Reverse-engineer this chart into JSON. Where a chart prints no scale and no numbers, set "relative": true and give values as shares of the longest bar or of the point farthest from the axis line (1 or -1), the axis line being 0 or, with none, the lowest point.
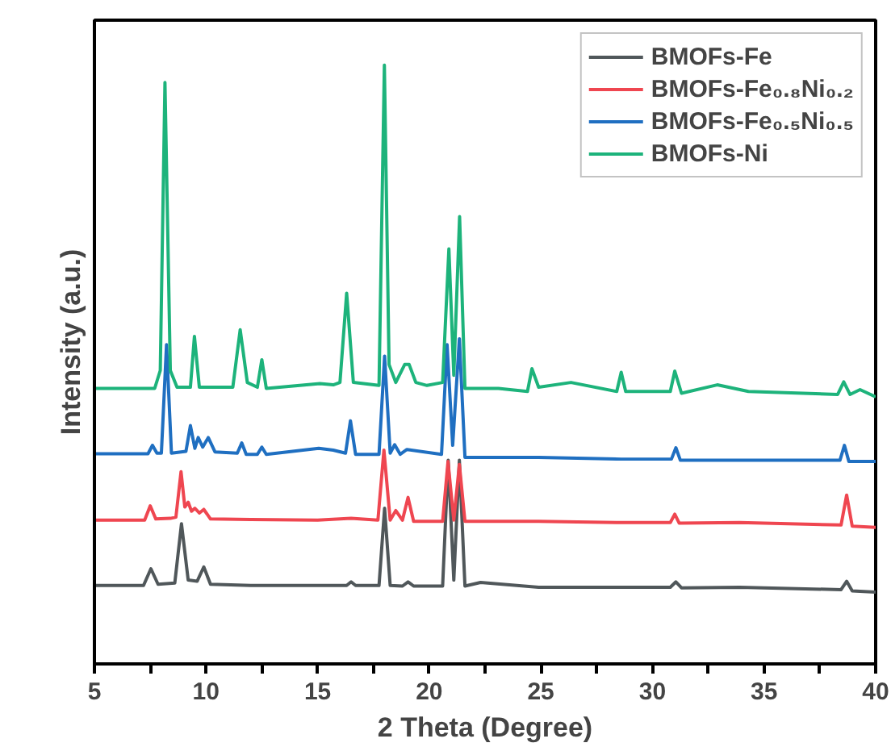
{
  "chart_data": {
    "type": "line",
    "relative": true,
    "xlabel": "2 Theta (Degree)",
    "ylabel": "Intensity (a.u.)",
    "xlim": [
      5,
      40
    ],
    "xticks": [
      5,
      {
        "value": 7.5,
        "label": null
      },
      10,
      {
        "value": 12.5,
        "label": null
      },
      15,
      {
        "value": 17.5,
        "label": null
      },
      20,
      {
        "value": 22.5,
        "label": null
      },
      25,
      {
        "value": 27.5,
        "label": null
      },
      30,
      {
        "value": 32.5,
        "label": null
      },
      35,
      {
        "value": 37.5,
        "label": null
      },
      40
    ],
    "grid": false,
    "legend": "top right",
    "line_style": "solid",
    "series": [
      {
        "name": "BMOFs-Fe",
        "color": "#50575a",
        "x": [
          5,
          7.2,
          7.53,
          7.85,
          8.6,
          8.9,
          9.2,
          9.6,
          9.9,
          10.2,
          12,
          15,
          16.3,
          16.5,
          16.7,
          17.75,
          18.0,
          18.25,
          18.8,
          19.05,
          19.3,
          20.6,
          20.85,
          21.1,
          21.35,
          21.6,
          22.3,
          24.9,
          28.6,
          30.8,
          31.05,
          31.3,
          33.9,
          38.45,
          38.7,
          38.95,
          40
        ],
        "values": [
          0.131,
          0.131,
          0.159,
          0.133,
          0.135,
          0.234,
          0.14,
          0.138,
          0.162,
          0.133,
          0.131,
          0.131,
          0.131,
          0.137,
          0.131,
          0.131,
          0.26,
          0.131,
          0.13,
          0.137,
          0.13,
          0.13,
          0.34,
          0.14,
          0.34,
          0.13,
          0.136,
          0.128,
          0.128,
          0.128,
          0.137,
          0.127,
          0.128,
          0.124,
          0.138,
          0.122,
          0.12
        ]
      },
      {
        "name": "BMOFs-Fe₀.₈Ni₀.₂",
        "color": "#ef4650",
        "x": [
          5,
          7.25,
          7.5,
          7.75,
          8.4,
          8.65,
          8.88,
          9.05,
          9.2,
          9.35,
          9.5,
          9.7,
          9.9,
          10.2,
          12,
          15,
          16.5,
          17.7,
          17.97,
          18.25,
          18.5,
          18.8,
          19.05,
          19.3,
          20.6,
          20.84,
          21.1,
          21.35,
          21.6,
          24.9,
          28.6,
          30.8,
          31.0,
          31.2,
          33.9,
          38.45,
          38.7,
          38.95,
          40
        ],
        "values": [
          0.24,
          0.24,
          0.264,
          0.242,
          0.243,
          0.245,
          0.321,
          0.262,
          0.27,
          0.255,
          0.26,
          0.252,
          0.258,
          0.242,
          0.241,
          0.24,
          0.243,
          0.24,
          0.357,
          0.24,
          0.256,
          0.24,
          0.278,
          0.238,
          0.238,
          0.338,
          0.24,
          0.333,
          0.238,
          0.238,
          0.236,
          0.236,
          0.25,
          0.235,
          0.236,
          0.232,
          0.282,
          0.23,
          0.228
        ]
      },
      {
        "name": "BMOFs-Fe₀.₅Ni₀.₅",
        "color": "#1f6fc1",
        "x": [
          5,
          7.4,
          7.6,
          7.8,
          8.0,
          8.23,
          8.45,
          9.1,
          9.3,
          9.5,
          9.65,
          9.85,
          10.1,
          10.4,
          11.4,
          11.6,
          11.8,
          12.3,
          12.5,
          12.7,
          15.05,
          15.7,
          16.25,
          16.47,
          16.7,
          17.75,
          18.0,
          18.25,
          18.45,
          18.7,
          19.0,
          20.55,
          20.8,
          21.05,
          21.35,
          21.6,
          24.9,
          28.6,
          30.85,
          31.05,
          31.25,
          38.4,
          38.6,
          38.8,
          40
        ],
        "values": [
          0.351,
          0.351,
          0.365,
          0.352,
          0.352,
          0.533,
          0.352,
          0.355,
          0.398,
          0.36,
          0.378,
          0.362,
          0.378,
          0.354,
          0.352,
          0.369,
          0.35,
          0.35,
          0.362,
          0.35,
          0.36,
          0.357,
          0.352,
          0.406,
          0.35,
          0.35,
          0.514,
          0.352,
          0.366,
          0.35,
          0.358,
          0.35,
          0.533,
          0.365,
          0.543,
          0.345,
          0.345,
          0.342,
          0.342,
          0.361,
          0.34,
          0.34,
          0.365,
          0.338,
          0.338
        ]
      },
      {
        "name": "BMOFs-Ni",
        "color": "#1db37b",
        "x": [
          5,
          7.7,
          7.95,
          8.16,
          8.4,
          8.7,
          9.3,
          9.48,
          9.7,
          11.2,
          11.53,
          11.85,
          12.3,
          12.5,
          12.7,
          15.1,
          15.7,
          16.0,
          16.3,
          16.6,
          17.75,
          17.99,
          18.2,
          18.5,
          18.9,
          19.1,
          19.4,
          19.9,
          20.6,
          20.88,
          21.1,
          21.36,
          21.6,
          23.1,
          24.4,
          24.6,
          24.9,
          26.35,
          28.4,
          28.6,
          28.8,
          30.8,
          31.0,
          31.3,
          32.9,
          34.3,
          38.3,
          38.57,
          38.85,
          39.3,
          40
        ],
        "values": [
          0.46,
          0.46,
          0.49,
          0.971,
          0.49,
          0.462,
          0.462,
          0.547,
          0.462,
          0.462,
          0.558,
          0.47,
          0.462,
          0.508,
          0.46,
          0.468,
          0.466,
          0.47,
          0.619,
          0.47,
          0.465,
          1.0,
          0.5,
          0.47,
          0.5,
          0.5,
          0.47,
          0.465,
          0.47,
          0.693,
          0.482,
          0.747,
          0.46,
          0.46,
          0.455,
          0.493,
          0.462,
          0.47,
          0.455,
          0.487,
          0.455,
          0.455,
          0.489,
          0.452,
          0.466,
          0.455,
          0.45,
          0.471,
          0.45,
          0.458,
          0.446
        ]
      }
    ]
  }
}
